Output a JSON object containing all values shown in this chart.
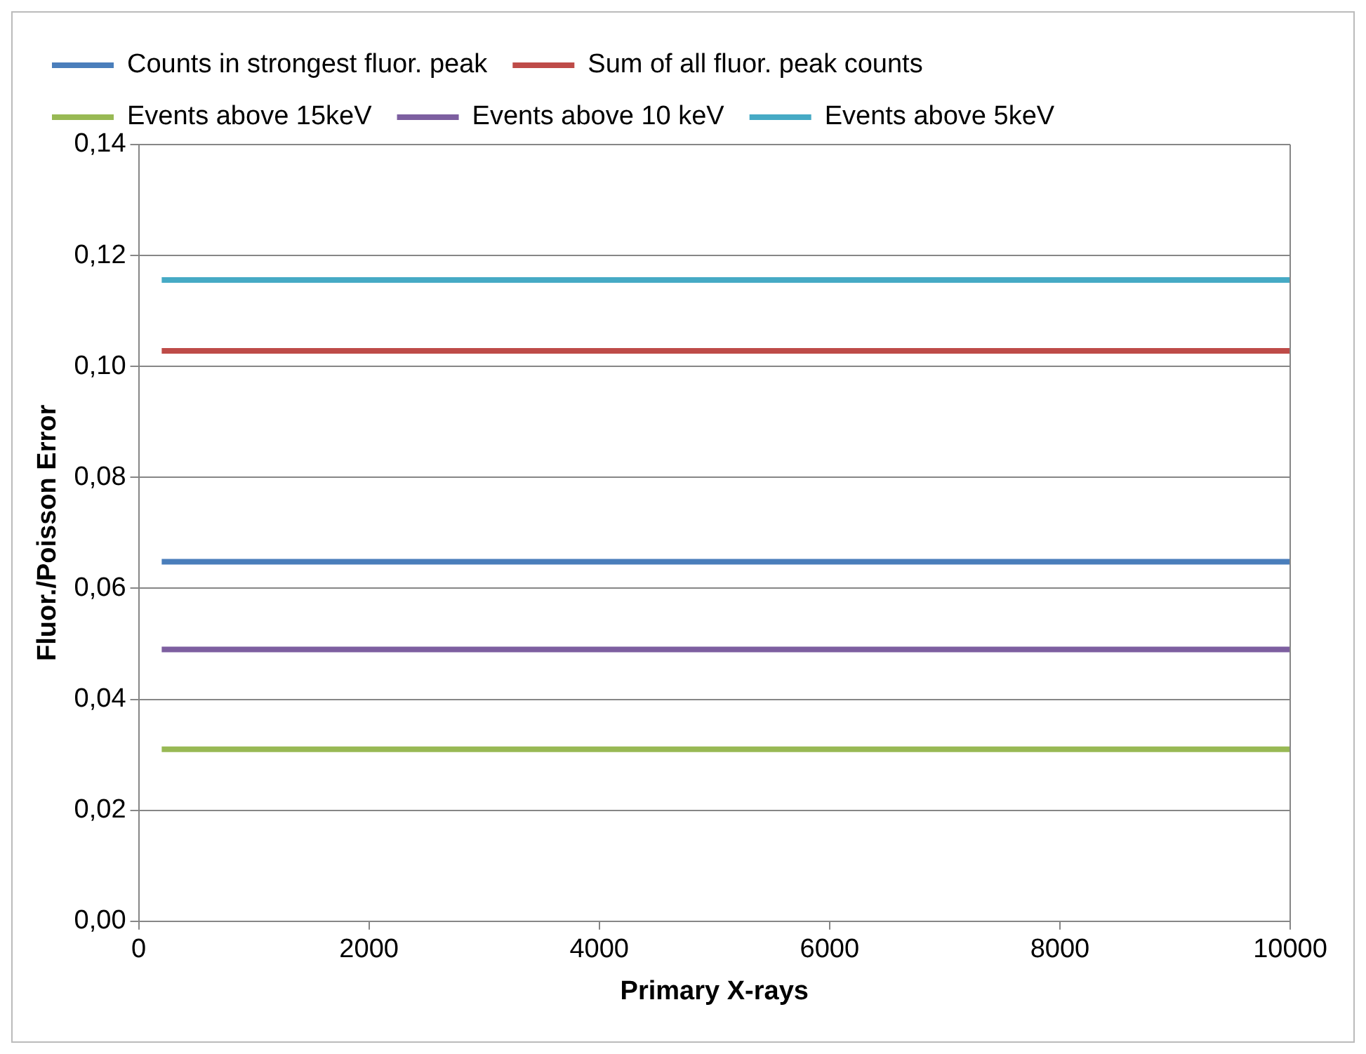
{
  "chart_data": {
    "type": "line",
    "xlabel": "Primary X-rays",
    "ylabel": "Fluor./Poisson Error",
    "x": [
      200,
      10000
    ],
    "series": [
      {
        "name": "Counts in strongest fluor. peak",
        "color": "#4a7ebb",
        "values": [
          0.0648,
          0.0648
        ]
      },
      {
        "name": "Sum of all fluor. peak counts",
        "color": "#be4b48",
        "values": [
          0.1028,
          0.1028
        ]
      },
      {
        "name": "Events above 15keV",
        "color": "#98b954",
        "values": [
          0.031,
          0.031
        ]
      },
      {
        "name": "Events above 10 keV",
        "color": "#7d5fa0",
        "values": [
          0.049,
          0.049
        ]
      },
      {
        "name": "Events above 5keV",
        "color": "#46aac5",
        "values": [
          0.1156,
          0.1156
        ]
      }
    ],
    "xlim": [
      0,
      10000
    ],
    "xticks": [
      0,
      2000,
      4000,
      6000,
      8000,
      10000
    ],
    "ylim": [
      0,
      0.14
    ],
    "yticks": [
      {
        "value": 0,
        "label": "0,00"
      },
      {
        "value": 0.02,
        "label": "0,02"
      },
      {
        "value": 0.04,
        "label": "0,04"
      },
      {
        "value": 0.06,
        "label": "0,06"
      },
      {
        "value": 0.08,
        "label": "0,08"
      },
      {
        "value": 0.1,
        "label": "0,10"
      },
      {
        "value": 0.12,
        "label": "0,12"
      },
      {
        "value": 0.14,
        "label": "0,14"
      }
    ],
    "grid": "y",
    "legend": "top",
    "marker": "none",
    "line_style": "solid"
  }
}
